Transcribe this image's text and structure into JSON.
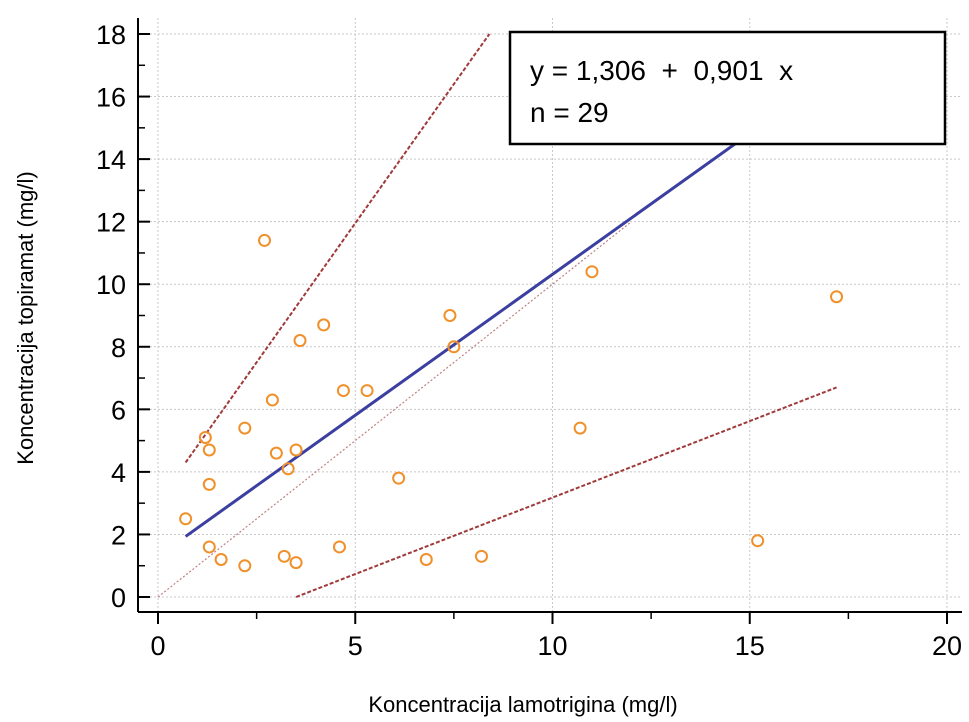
{
  "chart_data": {
    "type": "scatter",
    "xlabel": "Koncentracija lamotrigina (mg/l)",
    "ylabel": "Koncentracija topiramat (mg/l)",
    "xlim": [
      0,
      20
    ],
    "ylim": [
      0,
      18
    ],
    "x_ticks": [
      "0",
      "5",
      "10",
      "15",
      "20"
    ],
    "y_ticks": [
      "0",
      "2",
      "4",
      "6",
      "8",
      "10",
      "12",
      "14",
      "16",
      "18"
    ],
    "grid": true,
    "points": [
      {
        "x": 0.7,
        "y": 2.5
      },
      {
        "x": 1.2,
        "y": 5.1
      },
      {
        "x": 1.3,
        "y": 4.7
      },
      {
        "x": 1.3,
        "y": 3.6
      },
      {
        "x": 1.3,
        "y": 1.6
      },
      {
        "x": 1.6,
        "y": 1.2
      },
      {
        "x": 2.2,
        "y": 1.0
      },
      {
        "x": 2.2,
        "y": 5.4
      },
      {
        "x": 2.7,
        "y": 11.4
      },
      {
        "x": 2.9,
        "y": 6.3
      },
      {
        "x": 3.0,
        "y": 4.6
      },
      {
        "x": 3.2,
        "y": 1.3
      },
      {
        "x": 3.3,
        "y": 4.1
      },
      {
        "x": 3.5,
        "y": 4.7
      },
      {
        "x": 3.5,
        "y": 1.1
      },
      {
        "x": 3.6,
        "y": 8.2
      },
      {
        "x": 4.2,
        "y": 8.7
      },
      {
        "x": 4.6,
        "y": 1.6
      },
      {
        "x": 4.7,
        "y": 6.6
      },
      {
        "x": 5.3,
        "y": 6.6
      },
      {
        "x": 6.1,
        "y": 3.8
      },
      {
        "x": 6.8,
        "y": 1.2
      },
      {
        "x": 7.4,
        "y": 9.0
      },
      {
        "x": 7.5,
        "y": 8.0
      },
      {
        "x": 8.2,
        "y": 1.3
      },
      {
        "x": 10.7,
        "y": 5.4
      },
      {
        "x": 11.0,
        "y": 10.4
      },
      {
        "x": 15.2,
        "y": 1.8
      },
      {
        "x": 17.2,
        "y": 9.6
      }
    ],
    "lines": {
      "regression": {
        "intercept": 1.306,
        "slope": 0.901,
        "x_from": 0.7,
        "x_to": 15.2,
        "color": "#3b3fa0"
      },
      "identity": {
        "x_from": 0,
        "x_to": 12,
        "color": "#c08080"
      },
      "upper_limit": {
        "x1": 0.7,
        "y1": 4.3,
        "x2": 8.4,
        "y2": 18.0,
        "color": "#a03a3a"
      },
      "lower_limit": {
        "x1": 3.5,
        "y1": 0,
        "x2": 17.2,
        "y2": 6.7,
        "color": "#a03a3a"
      }
    },
    "legend": {
      "position": "top-right",
      "equation": "y = 1,306  +  0,901  x",
      "n": "n = 29"
    },
    "colors": {
      "point": "#f0902a",
      "grid": "#c8c8c8",
      "axis": "#000000"
    }
  }
}
